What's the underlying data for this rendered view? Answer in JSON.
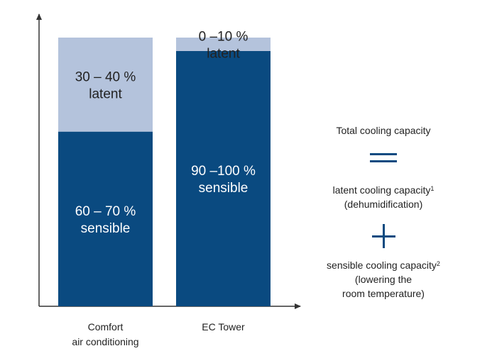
{
  "chart_data": {
    "type": "bar",
    "stacked": true,
    "categories": [
      "Comfort\nair conditioning",
      "EC Tower"
    ],
    "category_lines": [
      [
        "Comfort",
        "air conditioning"
      ],
      [
        "EC Tower"
      ]
    ],
    "series": [
      {
        "name": "sensible",
        "values": [
          65,
          95
        ],
        "label_lines": [
          [
            "60 – 70 %",
            "sensible"
          ],
          [
            "90 –100 %",
            "sensible"
          ]
        ],
        "color": "#0a4a80"
      },
      {
        "name": "latent",
        "values": [
          35,
          5
        ],
        "label_lines": [
          [
            "30 – 40 %",
            "latent"
          ],
          [
            "0 –10 %",
            "latent"
          ]
        ],
        "color": "#b4c3dc"
      }
    ],
    "ylim": [
      0,
      100
    ],
    "grid": false,
    "axis_color": "#333333"
  },
  "legend": {
    "total": "Total cooling capacity",
    "equals_symbol": "=",
    "latent_line1": "latent cooling capacity",
    "latent_sup": "1",
    "latent_line2": "(dehumidification)",
    "plus_symbol": "+",
    "sensible_line1": "sensible cooling capacity",
    "sensible_sup": "2",
    "sensible_line2": "(lowering the",
    "sensible_line3": "room temperature)",
    "symbol_color": "#0a4a80"
  }
}
